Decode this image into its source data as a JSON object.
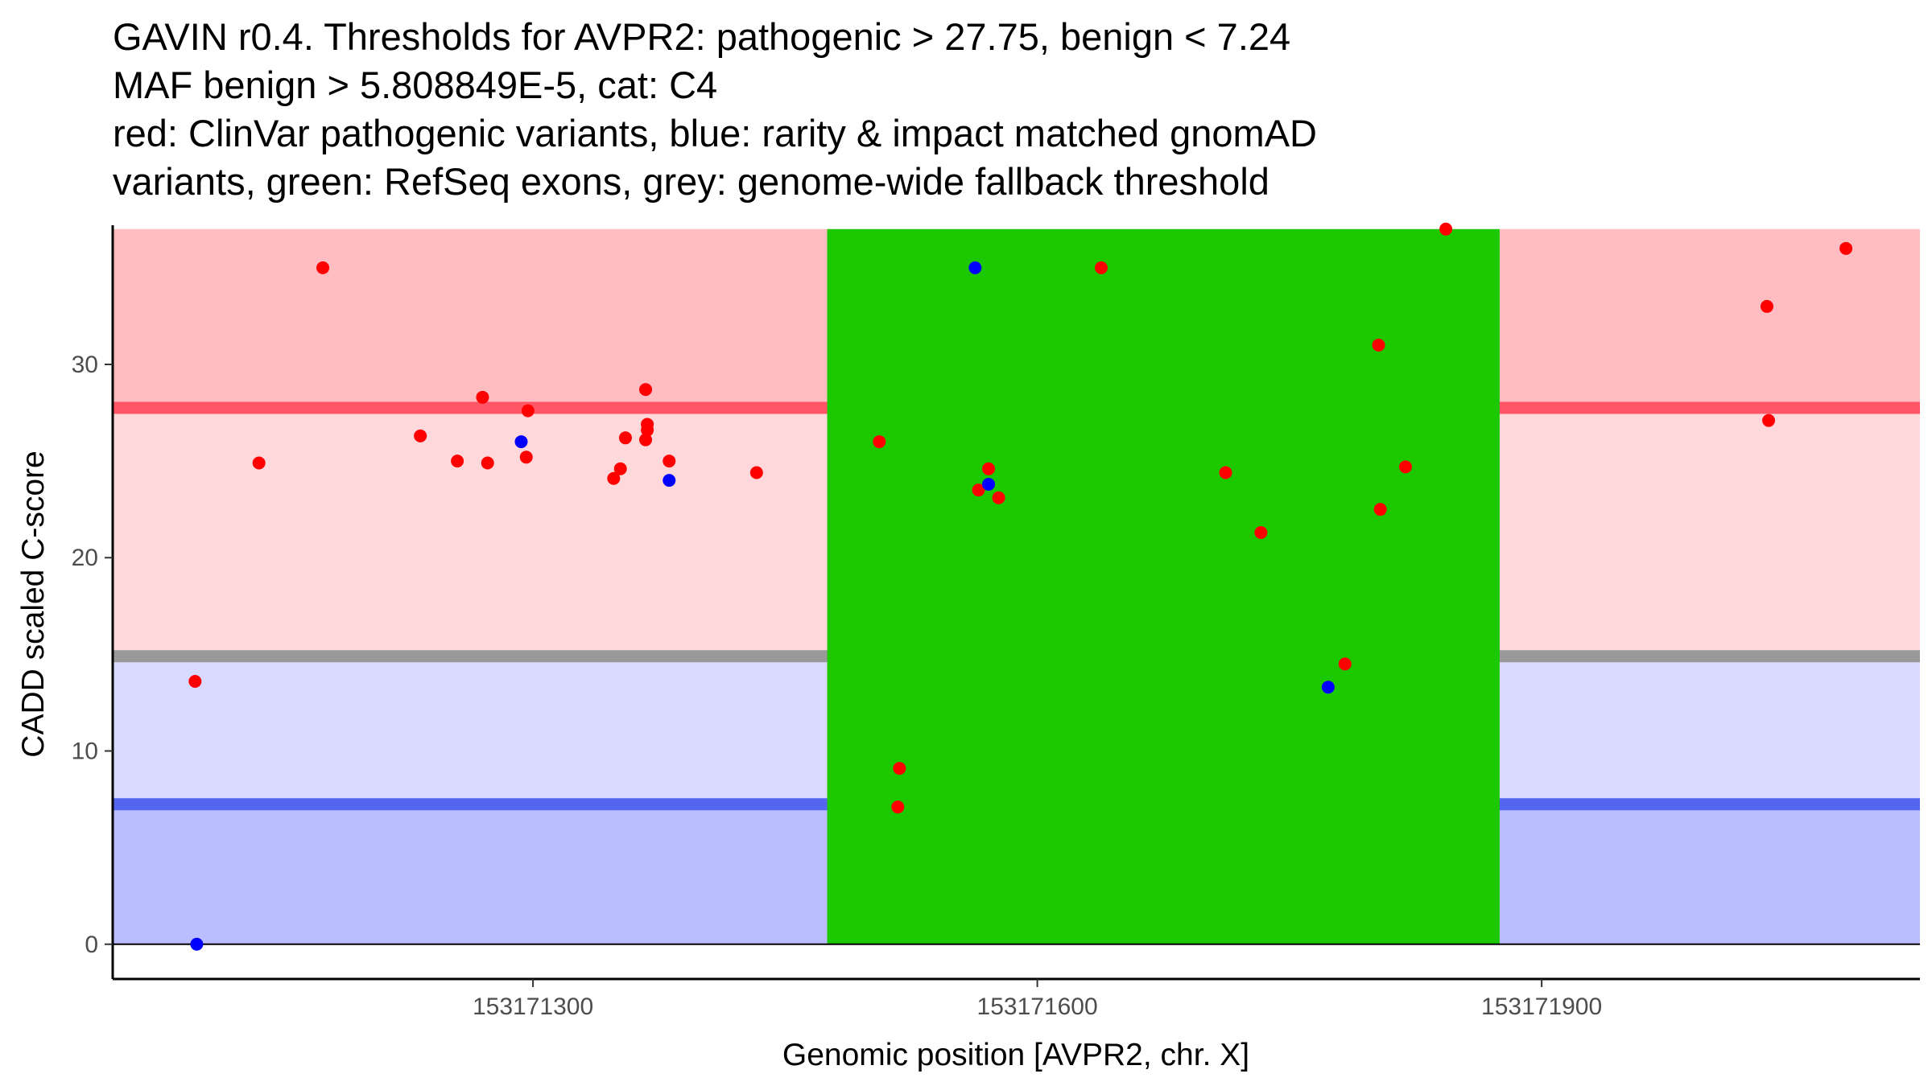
{
  "title_lines": [
    "GAVIN r0.4. Thresholds for AVPR2: pathogenic > 27.75, benign < 7.24",
    "MAF benign > 5.808849E-5, cat: C4",
    "red: ClinVar pathogenic variants, blue: rarity & impact matched gnomAD",
    "variants, green: RefSeq exons, grey: genome-wide fallback threshold"
  ],
  "chart_data": {
    "type": "scatter",
    "xlabel": "Genomic position [AVPR2, chr. X]",
    "ylabel": "CADD scaled C-score",
    "xlim": [
      153171050,
      153172125
    ],
    "ylim": [
      -1.8,
      37.2
    ],
    "x_ticks": [
      153171300,
      153171600,
      153171900
    ],
    "x_tick_labels": [
      "153171300",
      "153171600",
      "153171900"
    ],
    "y_ticks": [
      0,
      10,
      20,
      30
    ],
    "y_tick_labels": [
      "0",
      "10",
      "20",
      "30"
    ],
    "grid": false,
    "thresholds": {
      "pathogenic": 27.75,
      "benign": 7.24,
      "fallback": 14.9,
      "top": 37,
      "bottom": 0
    },
    "exon": {
      "start": 153171475,
      "end": 153171875
    },
    "colors": {
      "pathogenic_variant": "#ff0000",
      "gnomad_variant": "#0000ff",
      "exon": "#1cc800",
      "band_high": "#ffbcc1",
      "band_mid": "#ffd8dc",
      "band_low": "#d8daff",
      "band_bottom": "#babdff",
      "line_pathogenic": "#ff5567",
      "line_benign": "#5566ee",
      "line_fallback": "#999999"
    },
    "series": [
      {
        "name": "ClinVar pathogenic variants",
        "color": "#ff0000",
        "points": [
          [
            153171099,
            13.6
          ],
          [
            153171137,
            24.9
          ],
          [
            153171175,
            35.0
          ],
          [
            153171233,
            26.3
          ],
          [
            153171255,
            25.0
          ],
          [
            153171270,
            28.3
          ],
          [
            153171273,
            24.9
          ],
          [
            153171296,
            25.2
          ],
          [
            153171297,
            27.6
          ],
          [
            153171348,
            24.1
          ],
          [
            153171352,
            24.6
          ],
          [
            153171355,
            26.2
          ],
          [
            153171367,
            28.7
          ],
          [
            153171368,
            26.9
          ],
          [
            153171368,
            26.6
          ],
          [
            153171367,
            26.1
          ],
          [
            153171381,
            25.0
          ],
          [
            153171433,
            24.4
          ],
          [
            153171506,
            26.0
          ],
          [
            153171518,
            9.1
          ],
          [
            153171517,
            7.1
          ],
          [
            153171565,
            23.5
          ],
          [
            153171571,
            24.6
          ],
          [
            153171577,
            23.1
          ],
          [
            153171638,
            35.0
          ],
          [
            153171712,
            24.4
          ],
          [
            153171733,
            21.3
          ],
          [
            153171783,
            14.5
          ],
          [
            153171803,
            31.0
          ],
          [
            153171804,
            22.5
          ],
          [
            153171819,
            24.7
          ],
          [
            153171843,
            37.0
          ],
          [
            153172034,
            33.0
          ],
          [
            153172035,
            27.1
          ],
          [
            153172081,
            36.0
          ]
        ]
      },
      {
        "name": "rarity & impact matched gnomAD variants",
        "color": "#0000ff",
        "points": [
          [
            153171100,
            0.0
          ],
          [
            153171293,
            26.0
          ],
          [
            153171381,
            24.0
          ],
          [
            153171563,
            35.0
          ],
          [
            153171571,
            23.8
          ],
          [
            153171773,
            13.3
          ]
        ]
      }
    ]
  }
}
